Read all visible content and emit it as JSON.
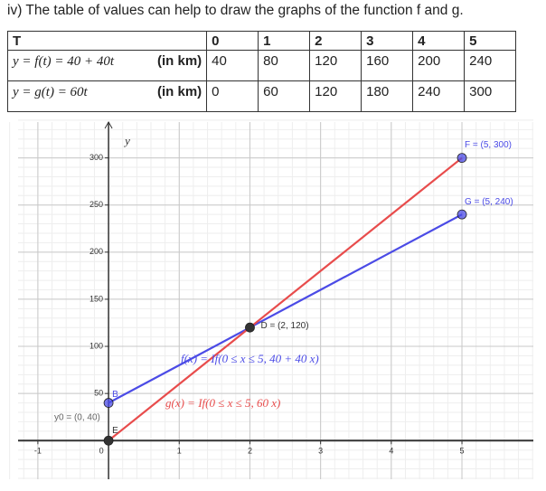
{
  "heading": "iv) The table of values can help to draw the graphs of the function f and g.",
  "table": {
    "header": [
      "T",
      "0",
      "1",
      "2",
      "3",
      "4",
      "5"
    ],
    "rows": [
      {
        "label": "y = f(t) = 40 + 40t",
        "unit": "(in km)",
        "cells": [
          "40",
          "80",
          "120",
          "160",
          "200",
          "240"
        ]
      },
      {
        "label": "y = g(t) = 60t",
        "unit": "(in km)",
        "cells": [
          "0",
          "60",
          "120",
          "180",
          "240",
          "300"
        ]
      }
    ]
  },
  "chart_data": {
    "type": "line",
    "y_label": "y",
    "x": [
      0,
      1,
      2,
      3,
      4,
      5
    ],
    "series": [
      {
        "name": "f(x) = If(0 ≤ x ≤ 5, 40 + 40 x)",
        "color": "#4b4be6",
        "values": [
          40,
          80,
          120,
          160,
          200,
          240
        ]
      },
      {
        "name": "g(x) = If(0 ≤ x ≤ 5, 60 x)",
        "color": "#e84c4c",
        "values": [
          0,
          60,
          120,
          180,
          240,
          300
        ]
      }
    ],
    "points": [
      {
        "name": "F = (5, 300)",
        "x": 5,
        "y": 300,
        "color": "#4b4be6"
      },
      {
        "name": "G = (5, 240)",
        "x": 5,
        "y": 240,
        "color": "#4b4be6"
      },
      {
        "name": "D = (2, 120)",
        "x": 2,
        "y": 120,
        "color": "#333333"
      },
      {
        "name": "B",
        "x": 0,
        "y": 40,
        "color": "#4b4be6"
      },
      {
        "name": "E",
        "x": 0,
        "y": 0,
        "color": "#333333"
      }
    ],
    "annotation": "y0 = (0, 40)",
    "xlim": [
      -1.28,
      6.01
    ],
    "ylim": [
      -41,
      338
    ],
    "xticks": [
      -1,
      0,
      1,
      2,
      3,
      4,
      5
    ],
    "yticks": [
      50,
      100,
      150,
      200,
      250,
      300
    ],
    "grid": true
  }
}
